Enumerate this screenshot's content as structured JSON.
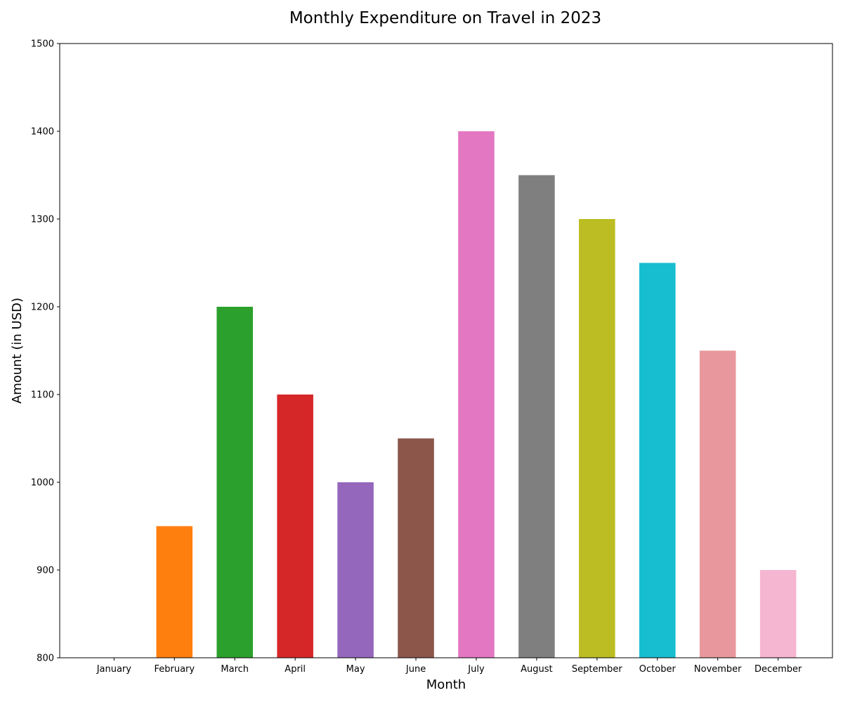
{
  "chart_data": {
    "type": "bar",
    "title": "Monthly Expenditure on Travel in 2023",
    "xlabel": "Month",
    "ylabel": "Amount (in USD)",
    "categories": [
      "January",
      "February",
      "March",
      "April",
      "May",
      "June",
      "July",
      "August",
      "September",
      "October",
      "November",
      "December"
    ],
    "values": [
      800,
      950,
      1200,
      1100,
      1000,
      1050,
      1400,
      1350,
      1300,
      1250,
      1150,
      900
    ],
    "colors": [
      "#1f77b4",
      "#ff7f0e",
      "#2ca02c",
      "#d62728",
      "#9467bd",
      "#8c564b",
      "#e377c2",
      "#7f7f7f",
      "#bcbd22",
      "#17becf",
      "#e8989c",
      "#f5b6d1"
    ],
    "ylim": [
      800,
      1500
    ],
    "yticks": [
      800,
      900,
      1000,
      1100,
      1200,
      1300,
      1400,
      1500
    ],
    "grid": false,
    "legend": "none"
  }
}
